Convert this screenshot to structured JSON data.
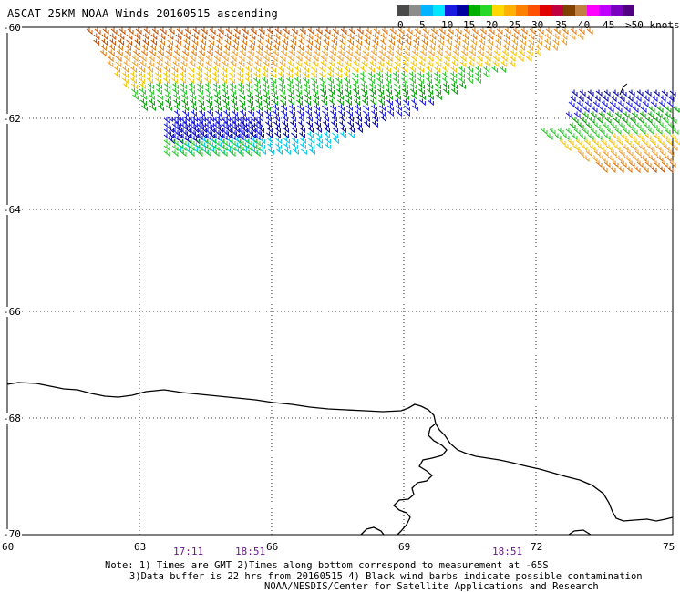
{
  "title": "ASCAT 25KM NOAA Winds 20160515 ascending",
  "legend": {
    "colors": [
      "#4a4a4a",
      "#8c8c8c",
      "#00b4ff",
      "#00e6ff",
      "#1a1ae0",
      "#0000a0",
      "#00b000",
      "#28d828",
      "#ffd800",
      "#ffb000",
      "#ff8000",
      "#ff5000",
      "#e00000",
      "#c00040",
      "#804000",
      "#c08040",
      "#ff00ff",
      "#c000ff",
      "#7a00c0",
      "#500080"
    ],
    "ticks": [
      "0",
      "5",
      "10",
      "15",
      "20",
      "25",
      "30",
      "35",
      "40",
      "45",
      ">50 knots"
    ]
  },
  "axes": {
    "lat_labels": [
      "-60",
      "-62",
      "-64",
      "-66",
      "-68",
      "-70"
    ],
    "lon_labels": [
      "60",
      "63",
      "66",
      "69",
      "72",
      "75"
    ]
  },
  "times": [
    "17:11",
    "18:51",
    "18:51"
  ],
  "notes": [
    "Note: 1) Times are GMT 2)Times along bottom correspond to measurement at -65S",
    "3)Data buffer is 22 hrs from 20160515 4) Black wind barbs indicate possible contamination",
    "NOAA/NESDIS/Center for Satellite Applications and Research"
  ]
}
